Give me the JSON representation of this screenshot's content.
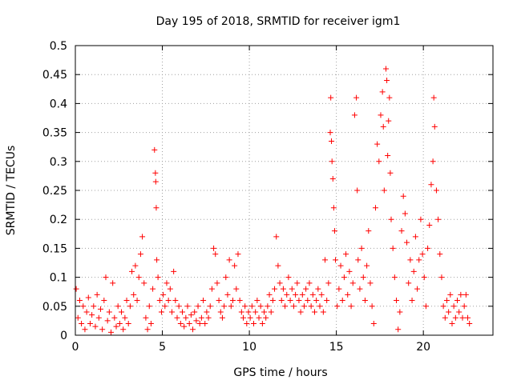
{
  "chart_data": {
    "type": "scatter",
    "title": "Day 195 of 2018, SRMTID for receiver igm1",
    "xlabel": "GPS time / hours",
    "ylabel": "SRMTID / TECUs",
    "xlim": [
      0,
      24
    ],
    "ylim": [
      0,
      0.5
    ],
    "grid": true,
    "marker": "+",
    "colors": {
      "marker": "#ff0000",
      "axes": "#000000",
      "grid": "#a0a0a0"
    },
    "x_tick_labels": [
      "0",
      "5",
      "10",
      "15",
      "20"
    ],
    "x_tick_values": [
      0,
      5,
      10,
      15,
      20
    ],
    "y_tick_labels": [
      "0",
      "0.05",
      "0.1",
      "0.15",
      "0.2",
      "0.25",
      "0.3",
      "0.35",
      "0.4",
      "0.45",
      "0.5"
    ],
    "y_tick_values": [
      0,
      0.05,
      0.1,
      0.15,
      0.2,
      0.25,
      0.3,
      0.35,
      0.4,
      0.45,
      0.5
    ],
    "series": [
      {
        "name": "igm1",
        "points": [
          [
            0.05,
            0.08
          ],
          [
            0.15,
            0.03
          ],
          [
            0.25,
            0.06
          ],
          [
            0.35,
            0.02
          ],
          [
            0.45,
            0.05
          ],
          [
            0.55,
            0.01
          ],
          [
            0.65,
            0.04
          ],
          [
            0.75,
            0.065
          ],
          [
            0.85,
            0.02
          ],
          [
            0.95,
            0.035
          ],
          [
            1.05,
            0.05
          ],
          [
            1.15,
            0.015
          ],
          [
            1.25,
            0.07
          ],
          [
            1.35,
            0.03
          ],
          [
            1.45,
            0.045
          ],
          [
            1.55,
            0.01
          ],
          [
            1.65,
            0.06
          ],
          [
            1.75,
            0.1
          ],
          [
            1.85,
            0.025
          ],
          [
            1.95,
            0.04
          ],
          [
            2.05,
            0.005
          ],
          [
            2.15,
            0.09
          ],
          [
            2.25,
            0.03
          ],
          [
            2.35,
            0.015
          ],
          [
            2.45,
            0.05
          ],
          [
            2.55,
            0.02
          ],
          [
            2.65,
            0.04
          ],
          [
            2.75,
            0.01
          ],
          [
            2.85,
            0.03
          ],
          [
            2.95,
            0.06
          ],
          [
            3.05,
            0.02
          ],
          [
            3.15,
            0.05
          ],
          [
            3.25,
            0.11
          ],
          [
            3.35,
            0.07
          ],
          [
            3.45,
            0.12
          ],
          [
            3.55,
            0.06
          ],
          [
            3.65,
            0.1
          ],
          [
            3.75,
            0.14
          ],
          [
            3.85,
            0.17
          ],
          [
            3.95,
            0.09
          ],
          [
            4.05,
            0.03
          ],
          [
            4.15,
            0.01
          ],
          [
            4.25,
            0.05
          ],
          [
            4.35,
            0.02
          ],
          [
            4.45,
            0.08
          ],
          [
            4.55,
            0.32
          ],
          [
            4.6,
            0.28
          ],
          [
            4.62,
            0.265
          ],
          [
            4.65,
            0.22
          ],
          [
            4.68,
            0.13
          ],
          [
            4.75,
            0.1
          ],
          [
            4.85,
            0.06
          ],
          [
            4.95,
            0.04
          ],
          [
            5.05,
            0.07
          ],
          [
            5.15,
            0.05
          ],
          [
            5.25,
            0.09
          ],
          [
            5.35,
            0.06
          ],
          [
            5.45,
            0.08
          ],
          [
            5.55,
            0.04
          ],
          [
            5.65,
            0.11
          ],
          [
            5.75,
            0.06
          ],
          [
            5.85,
            0.03
          ],
          [
            5.95,
            0.05
          ],
          [
            6.05,
            0.02
          ],
          [
            6.15,
            0.04
          ],
          [
            6.25,
            0.015
          ],
          [
            6.35,
            0.03
          ],
          [
            6.45,
            0.05
          ],
          [
            6.55,
            0.02
          ],
          [
            6.65,
            0.035
          ],
          [
            6.75,
            0.01
          ],
          [
            6.85,
            0.04
          ],
          [
            6.95,
            0.025
          ],
          [
            7.05,
            0.05
          ],
          [
            7.15,
            0.02
          ],
          [
            7.25,
            0.03
          ],
          [
            7.35,
            0.06
          ],
          [
            7.45,
            0.02
          ],
          [
            7.55,
            0.04
          ],
          [
            7.65,
            0.03
          ],
          [
            7.75,
            0.05
          ],
          [
            7.85,
            0.08
          ],
          [
            7.95,
            0.15
          ],
          [
            8.05,
            0.14
          ],
          [
            8.15,
            0.09
          ],
          [
            8.25,
            0.06
          ],
          [
            8.35,
            0.04
          ],
          [
            8.45,
            0.03
          ],
          [
            8.55,
            0.05
          ],
          [
            8.65,
            0.1
          ],
          [
            8.75,
            0.07
          ],
          [
            8.85,
            0.13
          ],
          [
            8.95,
            0.05
          ],
          [
            9.05,
            0.06
          ],
          [
            9.15,
            0.12
          ],
          [
            9.25,
            0.08
          ],
          [
            9.35,
            0.14
          ],
          [
            9.45,
            0.06
          ],
          [
            9.55,
            0.04
          ],
          [
            9.65,
            0.03
          ],
          [
            9.75,
            0.05
          ],
          [
            9.85,
            0.02
          ],
          [
            9.95,
            0.04
          ],
          [
            10.05,
            0.03
          ],
          [
            10.15,
            0.05
          ],
          [
            10.25,
            0.02
          ],
          [
            10.35,
            0.04
          ],
          [
            10.45,
            0.06
          ],
          [
            10.55,
            0.03
          ],
          [
            10.65,
            0.05
          ],
          [
            10.75,
            0.02
          ],
          [
            10.85,
            0.04
          ],
          [
            10.95,
            0.03
          ],
          [
            11.05,
            0.05
          ],
          [
            11.15,
            0.07
          ],
          [
            11.25,
            0.04
          ],
          [
            11.35,
            0.06
          ],
          [
            11.45,
            0.08
          ],
          [
            11.55,
            0.17
          ],
          [
            11.65,
            0.12
          ],
          [
            11.75,
            0.09
          ],
          [
            11.85,
            0.06
          ],
          [
            11.95,
            0.08
          ],
          [
            12.05,
            0.05
          ],
          [
            12.15,
            0.07
          ],
          [
            12.25,
            0.1
          ],
          [
            12.35,
            0.06
          ],
          [
            12.45,
            0.08
          ],
          [
            12.55,
            0.05
          ],
          [
            12.65,
            0.07
          ],
          [
            12.75,
            0.09
          ],
          [
            12.85,
            0.06
          ],
          [
            12.95,
            0.04
          ],
          [
            13.05,
            0.07
          ],
          [
            13.15,
            0.05
          ],
          [
            13.25,
            0.08
          ],
          [
            13.35,
            0.06
          ],
          [
            13.45,
            0.09
          ],
          [
            13.55,
            0.05
          ],
          [
            13.65,
            0.07
          ],
          [
            13.75,
            0.04
          ],
          [
            13.85,
            0.06
          ],
          [
            13.95,
            0.08
          ],
          [
            14.05,
            0.05
          ],
          [
            14.15,
            0.07
          ],
          [
            14.25,
            0.04
          ],
          [
            14.35,
            0.13
          ],
          [
            14.45,
            0.06
          ],
          [
            14.55,
            0.09
          ],
          [
            14.65,
            0.35
          ],
          [
            14.68,
            0.41
          ],
          [
            14.72,
            0.335
          ],
          [
            14.75,
            0.3
          ],
          [
            14.8,
            0.27
          ],
          [
            14.85,
            0.22
          ],
          [
            14.9,
            0.18
          ],
          [
            14.95,
            0.13
          ],
          [
            15.05,
            0.05
          ],
          [
            15.15,
            0.08
          ],
          [
            15.25,
            0.12
          ],
          [
            15.35,
            0.06
          ],
          [
            15.45,
            0.1
          ],
          [
            15.55,
            0.14
          ],
          [
            15.65,
            0.07
          ],
          [
            15.75,
            0.11
          ],
          [
            15.85,
            0.05
          ],
          [
            15.95,
            0.09
          ],
          [
            16.05,
            0.38
          ],
          [
            16.15,
            0.41
          ],
          [
            16.2,
            0.25
          ],
          [
            16.25,
            0.13
          ],
          [
            16.35,
            0.08
          ],
          [
            16.45,
            0.15
          ],
          [
            16.55,
            0.1
          ],
          [
            16.65,
            0.06
          ],
          [
            16.75,
            0.12
          ],
          [
            16.85,
            0.18
          ],
          [
            16.95,
            0.09
          ],
          [
            17.05,
            0.05
          ],
          [
            17.15,
            0.02
          ],
          [
            17.25,
            0.22
          ],
          [
            17.35,
            0.33
          ],
          [
            17.45,
            0.3
          ],
          [
            17.55,
            0.38
          ],
          [
            17.65,
            0.42
          ],
          [
            17.7,
            0.36
          ],
          [
            17.75,
            0.25
          ],
          [
            17.85,
            0.46
          ],
          [
            17.9,
            0.44
          ],
          [
            17.95,
            0.31
          ],
          [
            18.0,
            0.37
          ],
          [
            18.05,
            0.41
          ],
          [
            18.1,
            0.28
          ],
          [
            18.15,
            0.2
          ],
          [
            18.25,
            0.15
          ],
          [
            18.35,
            0.1
          ],
          [
            18.45,
            0.06
          ],
          [
            18.55,
            0.01
          ],
          [
            18.65,
            0.04
          ],
          [
            18.75,
            0.18
          ],
          [
            18.85,
            0.24
          ],
          [
            18.95,
            0.21
          ],
          [
            19.05,
            0.16
          ],
          [
            19.15,
            0.09
          ],
          [
            19.25,
            0.13
          ],
          [
            19.35,
            0.06
          ],
          [
            19.45,
            0.11
          ],
          [
            19.55,
            0.17
          ],
          [
            19.65,
            0.08
          ],
          [
            19.75,
            0.13
          ],
          [
            19.85,
            0.2
          ],
          [
            19.95,
            0.14
          ],
          [
            20.05,
            0.1
          ],
          [
            20.15,
            0.05
          ],
          [
            20.25,
            0.15
          ],
          [
            20.35,
            0.19
          ],
          [
            20.45,
            0.26
          ],
          [
            20.55,
            0.3
          ],
          [
            20.6,
            0.41
          ],
          [
            20.65,
            0.36
          ],
          [
            20.75,
            0.25
          ],
          [
            20.85,
            0.2
          ],
          [
            20.95,
            0.14
          ],
          [
            21.05,
            0.1
          ],
          [
            21.15,
            0.05
          ],
          [
            21.25,
            0.03
          ],
          [
            21.35,
            0.06
          ],
          [
            21.45,
            0.04
          ],
          [
            21.55,
            0.07
          ],
          [
            21.65,
            0.02
          ],
          [
            21.75,
            0.05
          ],
          [
            21.85,
            0.03
          ],
          [
            21.95,
            0.06
          ],
          [
            22.05,
            0.04
          ],
          [
            22.15,
            0.07
          ],
          [
            22.25,
            0.03
          ],
          [
            22.35,
            0.05
          ],
          [
            22.45,
            0.07
          ],
          [
            22.55,
            0.03
          ],
          [
            22.65,
            0.02
          ]
        ]
      }
    ]
  }
}
